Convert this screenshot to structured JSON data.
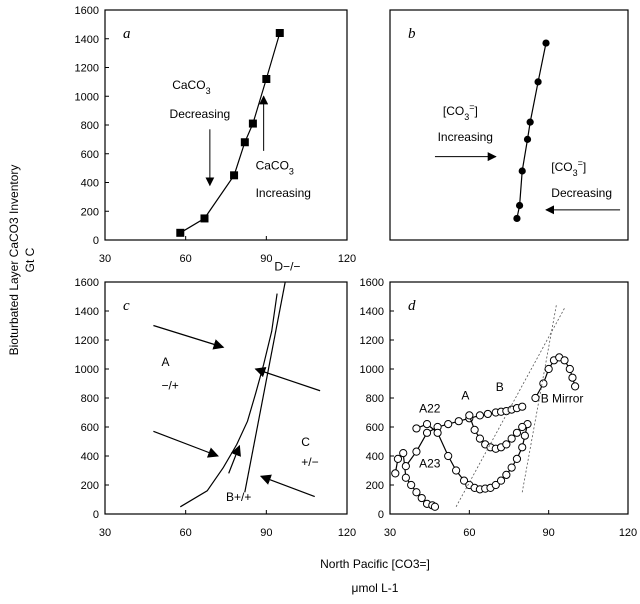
{
  "chart_data": [
    {
      "type": "line",
      "panel": "a",
      "xlim": [
        30,
        120
      ],
      "ylim": [
        0,
        1600
      ],
      "x_ticks": [
        30,
        60,
        90,
        120
      ],
      "y_ticks": [
        0,
        200,
        400,
        600,
        800,
        1000,
        1200,
        1400,
        1600
      ],
      "marker": "square",
      "series": [
        {
          "x": [
            58,
            67,
            78,
            82,
            85,
            90,
            95
          ],
          "y": [
            50,
            150,
            450,
            680,
            810,
            1120,
            1440
          ]
        }
      ],
      "annotations": [
        {
          "text": "CaCO3",
          "sub": "3",
          "base": "CaCO",
          "x": 55,
          "y": 1050
        },
        {
          "text": "Decreasing",
          "x": 54,
          "y": 850
        },
        {
          "text": "CaCO3",
          "sub": "3",
          "base": "CaCO",
          "x": 86,
          "y": 490
        },
        {
          "text": "Increasing",
          "x": 86,
          "y": 300
        }
      ]
    },
    {
      "type": "line",
      "panel": "b",
      "xlim": [
        30,
        120
      ],
      "ylim": [
        0,
        1600
      ],
      "marker": "circle",
      "series": [
        {
          "x": [
            78,
            79,
            80,
            82,
            83,
            86,
            89
          ],
          "y": [
            150,
            240,
            480,
            700,
            820,
            1100,
            1370
          ]
        }
      ],
      "annotations": [
        {
          "text": "[CO3=]",
          "x": 50,
          "y": 870
        },
        {
          "text": "Increasing",
          "x": 48,
          "y": 690
        },
        {
          "text": "[CO3=]",
          "x": 91,
          "y": 480
        },
        {
          "text": "Decreasing",
          "x": 91,
          "y": 300
        }
      ]
    },
    {
      "type": "line",
      "panel": "c",
      "xlim": [
        30,
        120
      ],
      "ylim": [
        0,
        1600
      ],
      "x_ticks": [
        30,
        60,
        90,
        120
      ],
      "y_ticks": [
        0,
        200,
        400,
        600,
        800,
        1000,
        1200,
        1400,
        1600
      ],
      "series": [
        {
          "x": [
            58,
            68,
            74,
            79,
            83,
            86,
            89,
            92,
            94
          ],
          "y": [
            50,
            160,
            320,
            480,
            640,
            830,
            1030,
            1260,
            1520
          ]
        },
        {
          "x": [
            82,
            97
          ],
          "y": [
            150,
            1600
          ]
        }
      ],
      "labels": [
        {
          "text": "A",
          "x": 51,
          "y": 1020
        },
        {
          "text": "−/+",
          "x": 51,
          "y": 860
        },
        {
          "text": "C",
          "x": 103,
          "y": 470
        },
        {
          "text": "+/−",
          "x": 103,
          "y": 330
        },
        {
          "text": "B+/+",
          "x": 75,
          "y": 90
        },
        {
          "text": "D−/−",
          "x": 93,
          "y": 1680
        }
      ]
    },
    {
      "type": "scatter",
      "panel": "d",
      "xlim": [
        30,
        120
      ],
      "ylim": [
        0,
        1600
      ],
      "x_ticks": [
        30,
        60,
        90,
        120
      ],
      "y_ticks": [
        0,
        200,
        400,
        600,
        800,
        1000,
        1200,
        1400,
        1600
      ],
      "marker": "open circle",
      "series": [
        {
          "name": "A23",
          "x": [
            32,
            33,
            35,
            36,
            38,
            40,
            42,
            44,
            46,
            47
          ],
          "y": [
            280,
            380,
            420,
            250,
            200,
            150,
            110,
            70,
            60,
            50
          ]
        },
        {
          "x": [
            36,
            40,
            44,
            48,
            52,
            56,
            60,
            64,
            67,
            70,
            72,
            74,
            76,
            78,
            80
          ],
          "y": [
            330,
            430,
            560,
            600,
            620,
            640,
            660,
            680,
            690,
            700,
            705,
            710,
            720,
            730,
            740
          ]
        },
        {
          "name": "A22",
          "x": [
            40,
            44,
            48,
            52,
            55,
            58,
            60,
            62,
            64,
            66,
            68,
            70,
            72,
            74,
            76,
            78,
            80,
            81,
            82
          ],
          "y": [
            590,
            620,
            560,
            400,
            300,
            230,
            200,
            180,
            170,
            175,
            180,
            200,
            230,
            270,
            320,
            380,
            460,
            540,
            620
          ]
        },
        {
          "name": "B",
          "x": [
            60,
            62,
            64,
            66,
            68,
            70,
            72,
            74,
            76,
            78,
            80
          ],
          "y": [
            680,
            580,
            520,
            480,
            460,
            450,
            460,
            480,
            520,
            560,
            600
          ]
        },
        {
          "name": "B Mirror",
          "x": [
            85,
            88,
            90,
            92,
            94,
            96,
            98,
            99,
            100
          ],
          "y": [
            800,
            900,
            1000,
            1060,
            1080,
            1060,
            1000,
            940,
            880
          ]
        }
      ],
      "labels": [
        {
          "text": "A",
          "x": 57,
          "y": 790
        },
        {
          "text": "B",
          "x": 70,
          "y": 850
        },
        {
          "text": "A22",
          "x": 41,
          "y": 700
        },
        {
          "text": "A23",
          "x": 41,
          "y": 320
        },
        {
          "text": "B Mirror",
          "x": 87,
          "y": 770
        }
      ]
    }
  ],
  "axis_labels": {
    "y_line1": "Bioturbated Layer CaCO3 Inventory",
    "y_line2": "Gt C",
    "x_line1": "North Pacific [CO3=]",
    "x_line2": "μmol L-1"
  }
}
